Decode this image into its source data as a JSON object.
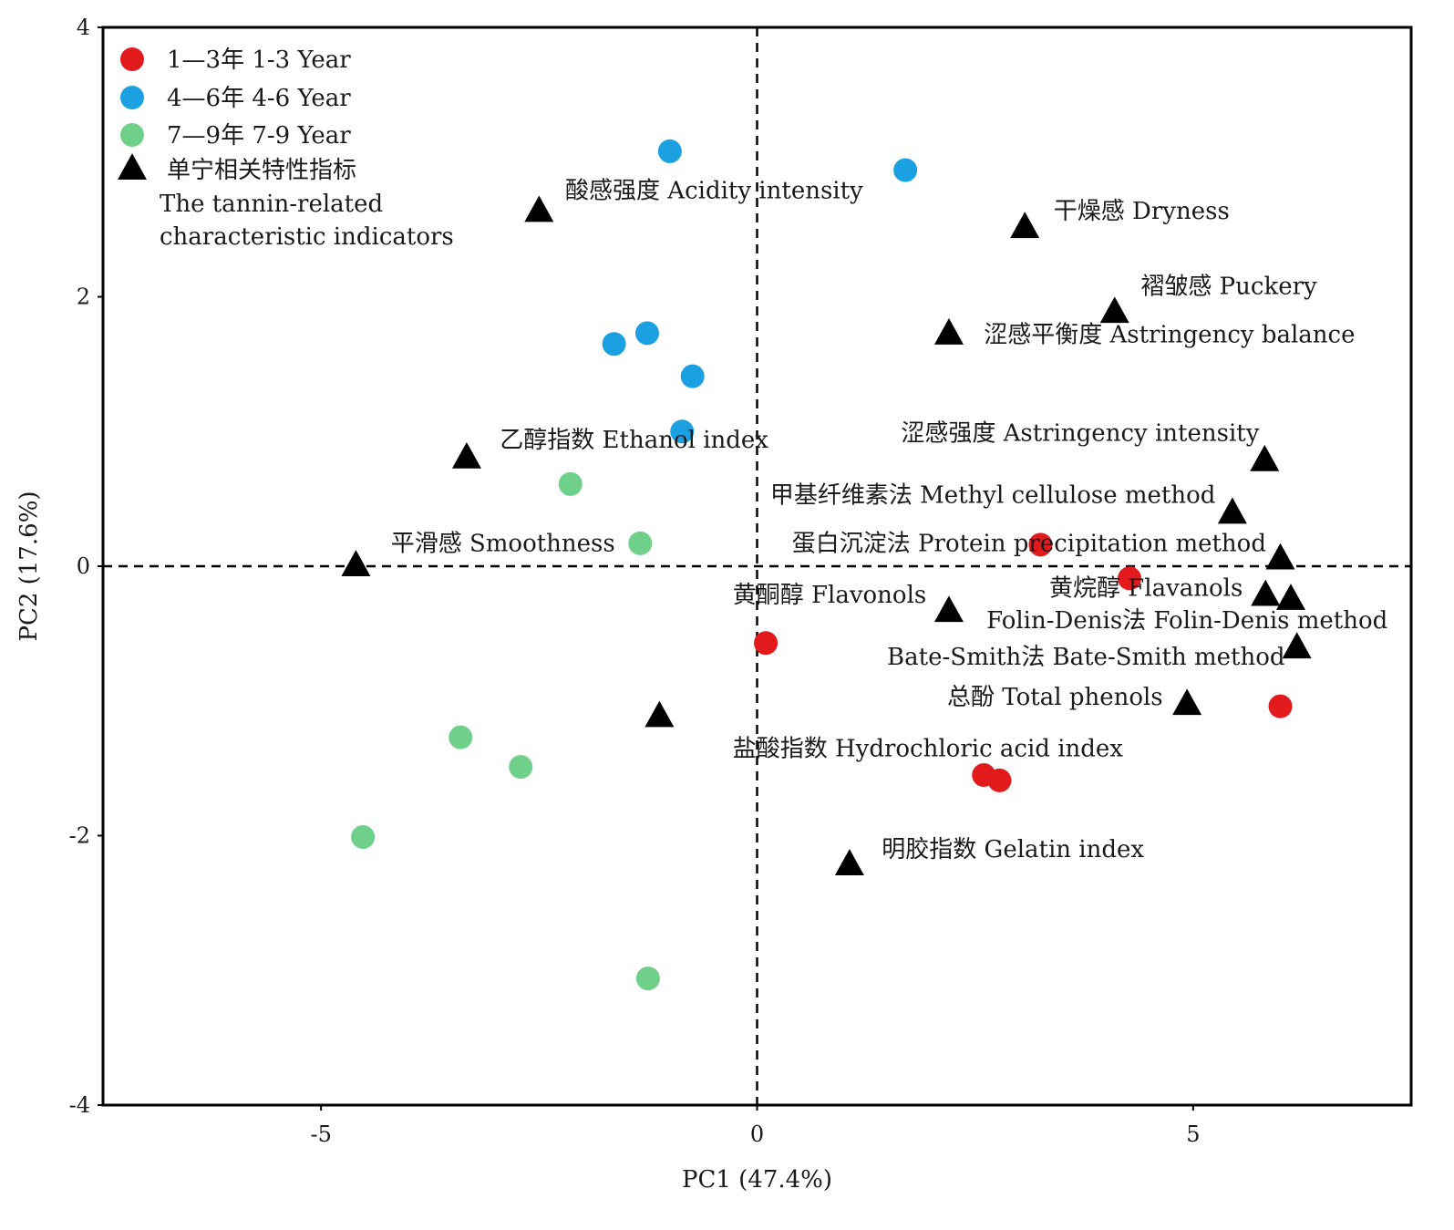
{
  "chart_data": {
    "type": "scatter",
    "xlabel": "PC1 (47.4%)",
    "ylabel": "PC2 (17.6%)",
    "xlim": [
      -7.5,
      7.5
    ],
    "ylim": [
      -4,
      4
    ],
    "xticks": [
      -5,
      0,
      5
    ],
    "yticks": [
      -4,
      -2,
      0,
      2,
      4
    ],
    "xtick_labels": [
      "-5",
      "0",
      "5"
    ],
    "ytick_labels": [
      "-4",
      "-2",
      "0",
      "2",
      "4"
    ],
    "grid": false,
    "reference_lines": "dashed lines at x = 0 and y = 0",
    "legend": {
      "placement": "top-left",
      "entries": [
        {
          "marker": "circle",
          "color": "#e31a1c",
          "label": "1—3年 1-3 Year"
        },
        {
          "marker": "circle",
          "color": "#1ba1e2",
          "label": "4—6年 4-6 Year"
        },
        {
          "marker": "circle",
          "color": "#6fd089",
          "label": "7—9年 7-9 Year"
        },
        {
          "marker": "triangle",
          "color": "#000000",
          "label": "单宁相关特性指标",
          "label2": "The tannin-related",
          "label3": "characteristic indicators"
        }
      ]
    },
    "series": [
      {
        "name": "1—3年 1-3 Year",
        "marker": "circle",
        "color": "#e31a1c",
        "points": [
          [
            3.25,
            0.16
          ],
          [
            4.27,
            -0.09
          ],
          [
            0.1,
            -0.57
          ],
          [
            6.0,
            -1.04
          ],
          [
            2.6,
            -1.55
          ],
          [
            2.78,
            -1.59
          ]
        ]
      },
      {
        "name": "4—6年 4-6 Year",
        "marker": "circle",
        "color": "#1ba1e2",
        "points": [
          [
            -1.0,
            3.08
          ],
          [
            1.7,
            2.94
          ],
          [
            -1.64,
            1.65
          ],
          [
            -1.26,
            1.73
          ],
          [
            -0.74,
            1.41
          ],
          [
            -0.86,
            1.0
          ]
        ]
      },
      {
        "name": "7—9年 7-9 Year",
        "marker": "circle",
        "color": "#6fd089",
        "points": [
          [
            -2.14,
            0.61
          ],
          [
            -1.34,
            0.17
          ],
          [
            -3.4,
            -1.27
          ],
          [
            -2.71,
            -1.49
          ],
          [
            -4.52,
            -2.01
          ],
          [
            -1.25,
            -3.06
          ]
        ]
      },
      {
        "name": "单宁相关特性指标",
        "marker": "triangle",
        "color": "#000000",
        "points": [
          [
            -2.5,
            2.63
          ],
          [
            3.07,
            2.51
          ],
          [
            4.1,
            1.88
          ],
          [
            2.2,
            1.72
          ],
          [
            -3.33,
            0.8
          ],
          [
            5.82,
            0.78
          ],
          [
            5.45,
            0.39
          ],
          [
            -4.6,
            0.0
          ],
          [
            6.0,
            0.05
          ],
          [
            5.83,
            -0.22
          ],
          [
            6.12,
            -0.25
          ],
          [
            2.2,
            -0.34
          ],
          [
            6.19,
            -0.61
          ],
          [
            4.93,
            -1.03
          ],
          [
            -1.12,
            -1.12
          ],
          [
            1.06,
            -2.22
          ]
        ]
      }
    ],
    "annotations": [
      {
        "text": "酸感强度 Acidity intensity",
        "x": -2.2,
        "y": 2.73
      },
      {
        "text": "干燥感 Dryness",
        "x": 3.4,
        "y": 2.58
      },
      {
        "text": "褶皱感 Puckery",
        "x": 4.4,
        "y": 2.02
      },
      {
        "text": "涩感平衡度 Astringency balance",
        "x": 2.6,
        "y": 1.66
      },
      {
        "text": "乙醇指数 Ethanol index",
        "x": -2.95,
        "y": 0.88
      },
      {
        "text": "涩感强度 Astringency intensity",
        "x": 1.65,
        "y": 0.93
      },
      {
        "text": "甲基纤维素法 Methyl cellulose method",
        "x": 0.15,
        "y": 0.47
      },
      {
        "text": "平滑感 Smoothness",
        "x": -4.2,
        "y": 0.11
      },
      {
        "text": "蛋白沉淀法 Protein precipitation method",
        "x": 0.4,
        "y": 0.11
      },
      {
        "text": "黄烷醇 Flavanols",
        "x": 3.35,
        "y": -0.22
      },
      {
        "text": "黄酮醇 Flavonols",
        "x": -0.28,
        "y": -0.27
      },
      {
        "text": "Folin-Denis法 Folin-Denis method",
        "x": 2.63,
        "y": -0.46
      },
      {
        "text": "Bate-Smith法 Bate-Smith method",
        "x": 1.49,
        "y": -0.73
      },
      {
        "text": "总酚 Total phenols",
        "x": 2.18,
        "y": -1.03
      },
      {
        "text": "盐酸指数 Hydrochloric acid index",
        "x": -0.28,
        "y": -1.41
      },
      {
        "text": "明胶指数 Gelatin index",
        "x": 1.43,
        "y": -2.16
      }
    ]
  }
}
